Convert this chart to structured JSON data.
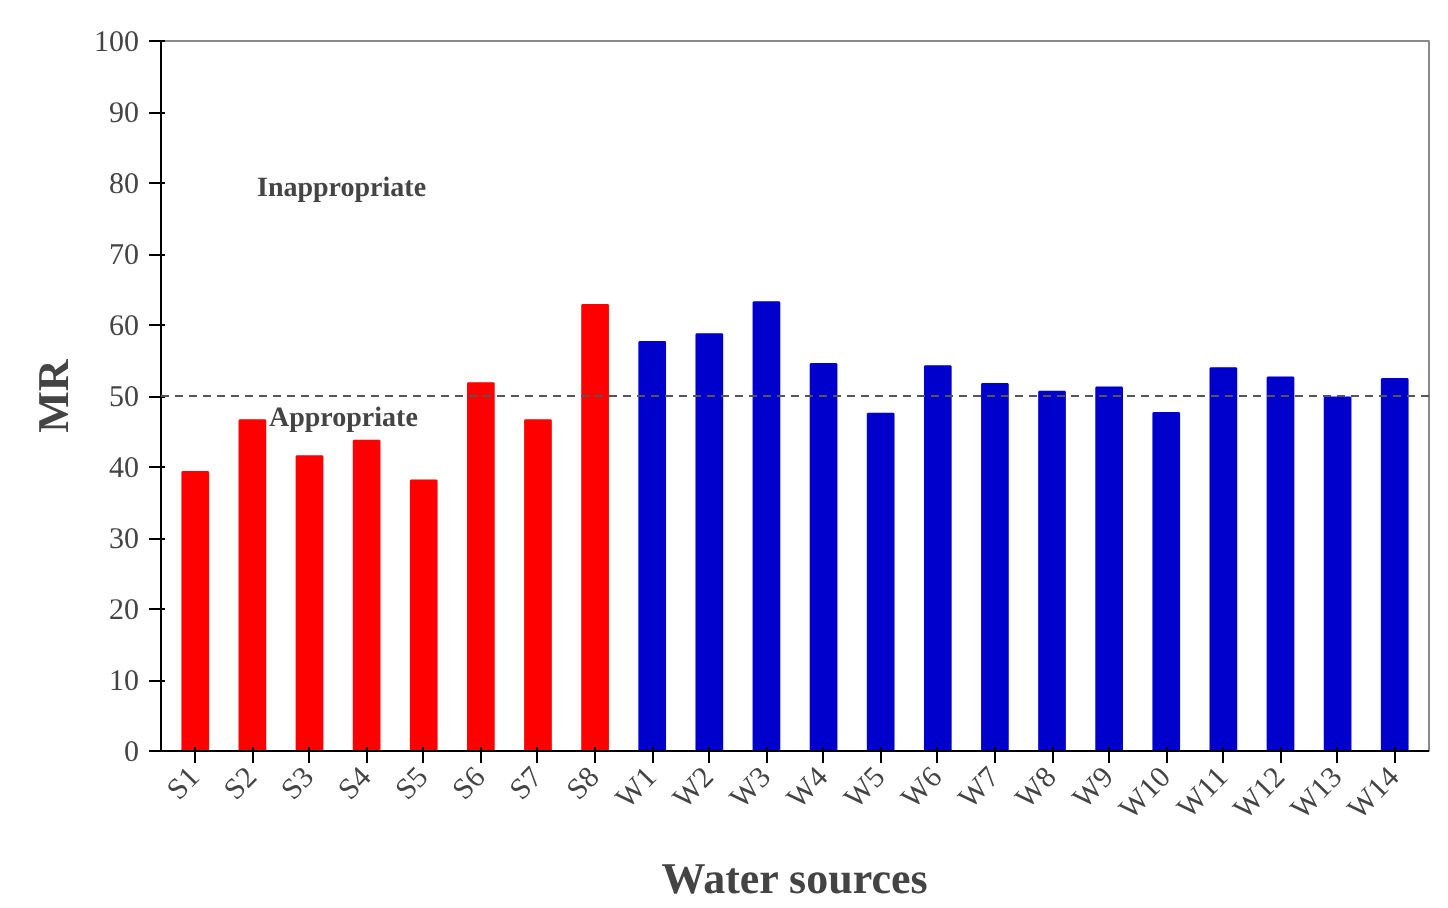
{
  "chart_data": {
    "type": "bar",
    "xlabel": "Water sources",
    "ylabel": "MR",
    "categories": [
      "S1",
      "S2",
      "S3",
      "S4",
      "S5",
      "S6",
      "S7",
      "S8",
      "W1",
      "W2",
      "W3",
      "W4",
      "W5",
      "W6",
      "W7",
      "W8",
      "W9",
      "W10",
      "W11",
      "W12",
      "W13",
      "W14"
    ],
    "values": [
      39.3,
      46.6,
      41.5,
      43.7,
      38.1,
      51.8,
      46.6,
      62.8,
      57.6,
      58.7,
      63.2,
      54.5,
      47.5,
      54.2,
      51.7,
      50.6,
      51.2,
      47.6,
      53.9,
      52.6,
      49.8,
      52.4
    ],
    "colors": [
      "#ff0000",
      "#ff0000",
      "#ff0000",
      "#ff0000",
      "#ff0000",
      "#ff0000",
      "#ff0000",
      "#ff0000",
      "#0000cc",
      "#0000cc",
      "#0000cc",
      "#0000cc",
      "#0000cc",
      "#0000cc",
      "#0000cc",
      "#0000cc",
      "#0000cc",
      "#0000cc",
      "#0000cc",
      "#0000cc",
      "#0000cc",
      "#0000cc"
    ],
    "ylim": [
      0,
      100
    ],
    "yticks": [
      0,
      10,
      20,
      30,
      40,
      50,
      60,
      70,
      80,
      90,
      100
    ],
    "grid": false,
    "ref_lines": [
      {
        "axis": "y",
        "value": 50,
        "line_style": "dashed",
        "color": "#555555"
      }
    ],
    "annotations": [
      "Inappropriate",
      "Appropriate"
    ]
  }
}
